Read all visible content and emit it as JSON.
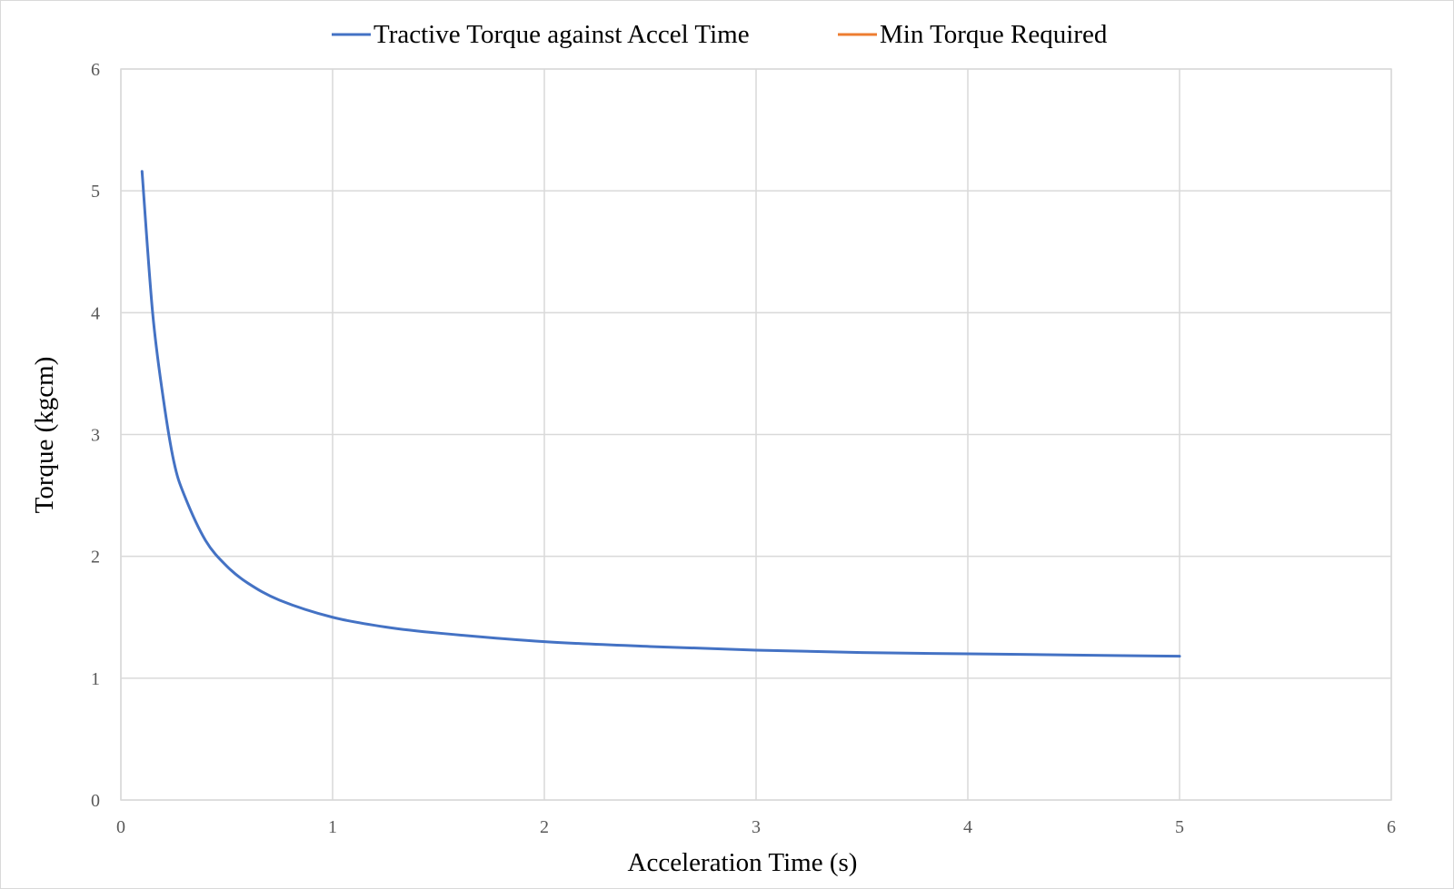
{
  "chart_data": {
    "type": "line",
    "title": "",
    "xlabel": "Acceleration Time (s)",
    "ylabel": "Torque (kgcm)",
    "xlim": [
      0,
      6
    ],
    "ylim": [
      0,
      6
    ],
    "x_ticks": [
      "0",
      "1",
      "2",
      "3",
      "4",
      "5",
      "6"
    ],
    "y_ticks": [
      "0",
      "1",
      "2",
      "3",
      "4",
      "5",
      "6"
    ],
    "grid": true,
    "legend_position": "top",
    "series": [
      {
        "name": "Tractive Torque against Accel Time",
        "color": "#4472C4",
        "x": [
          0.1,
          0.15,
          0.2,
          0.25,
          0.3,
          0.4,
          0.5,
          0.6,
          0.75,
          1.0,
          1.25,
          1.5,
          2.0,
          2.5,
          3.0,
          3.5,
          4.0,
          4.5,
          5.0
        ],
        "y": [
          5.16,
          4.0,
          3.3,
          2.78,
          2.5,
          2.13,
          1.92,
          1.78,
          1.64,
          1.5,
          1.42,
          1.37,
          1.3,
          1.26,
          1.23,
          1.21,
          1.2,
          1.19,
          1.18
        ]
      },
      {
        "name": "Min Torque Required",
        "color": "#ED7D31",
        "x": [],
        "y": []
      }
    ]
  }
}
